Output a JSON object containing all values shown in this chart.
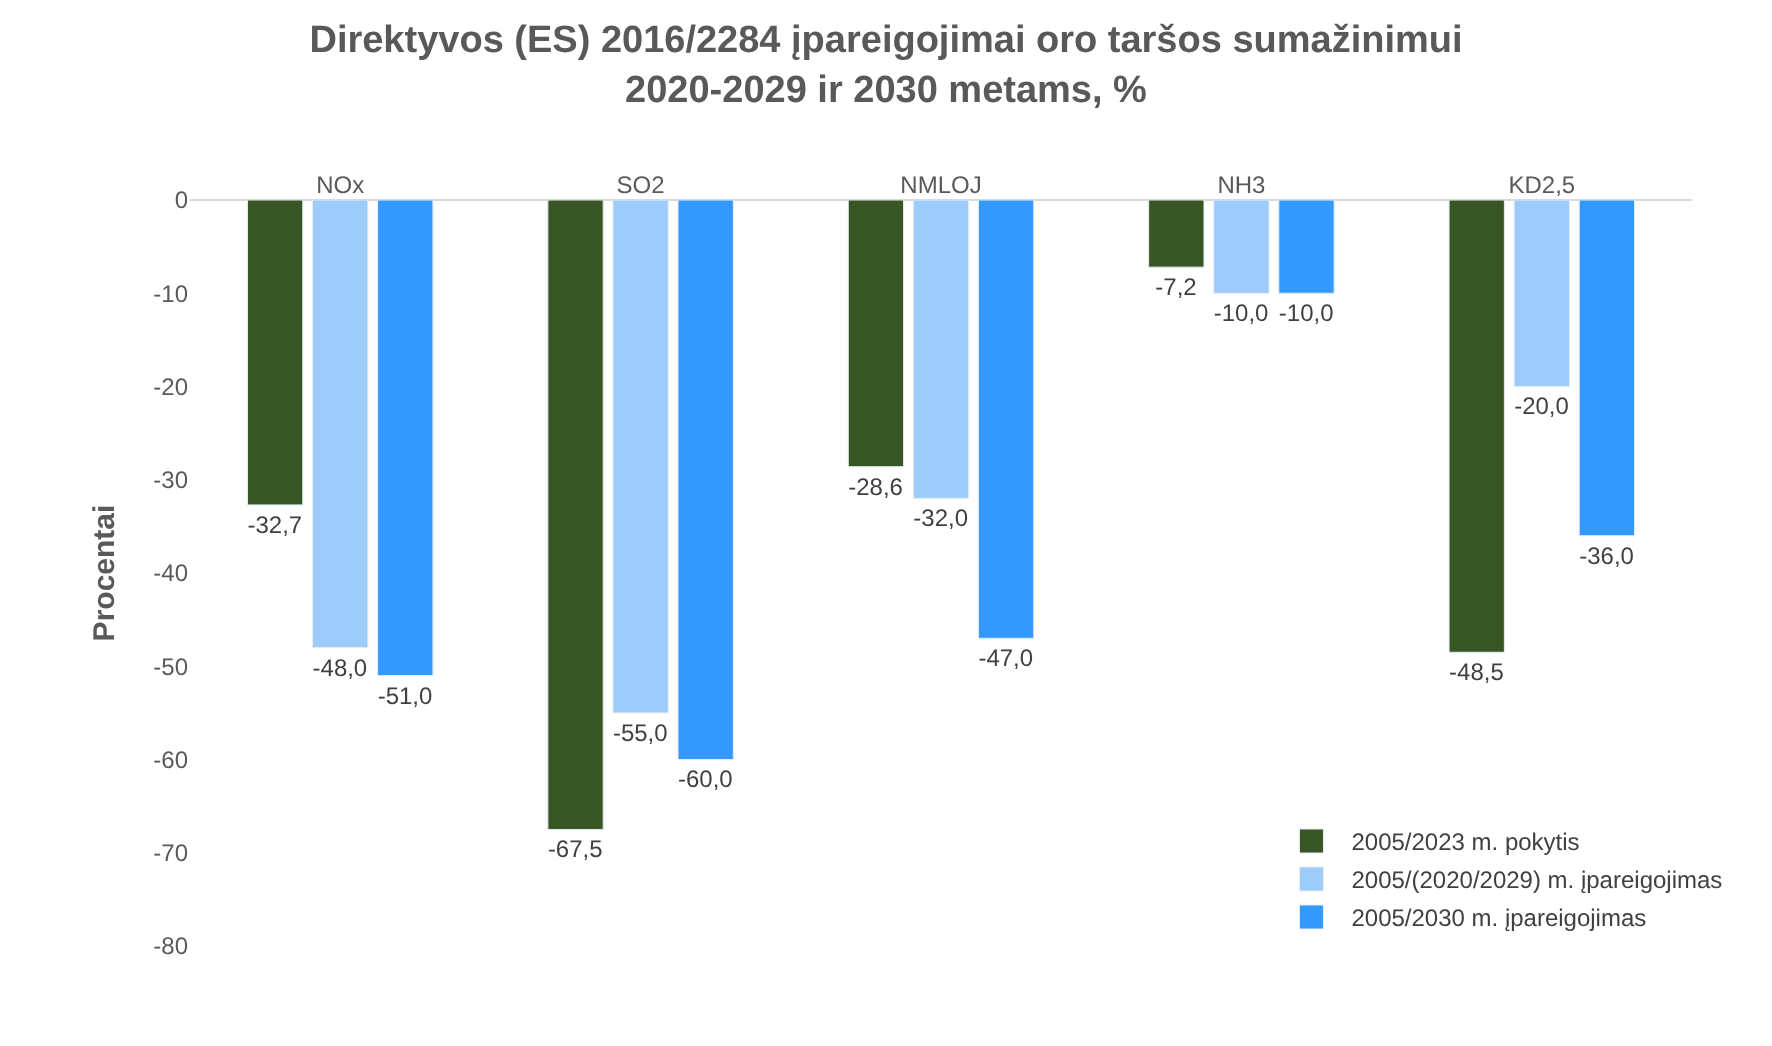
{
  "chart_data": {
    "type": "bar",
    "title": "Direktyvos (ES) 2016/2284 įpareigojimai oro taršos sumažinimui\n2020-2029 ir 2030 metams, %",
    "ylabel": "Procentai",
    "categories": [
      "NOx",
      "SO2",
      "NMLOJ",
      "NH3",
      "KD2,5"
    ],
    "series": [
      {
        "name": "2005/2023 m. pokytis",
        "color": "#375623",
        "values": [
          -32.7,
          -67.5,
          -28.6,
          -7.2,
          -48.5
        ],
        "value_labels": [
          "-32,7",
          "-67,5",
          "-28,6",
          "-7,2",
          "-48,5"
        ]
      },
      {
        "name": "2005/(2020/2029) m. įpareigojimas",
        "color": "#9dcbfa",
        "values": [
          -48.0,
          -55.0,
          -32.0,
          -10.0,
          -20.0
        ],
        "value_labels": [
          "-48,0",
          "-55,0",
          "-32,0",
          "-10,0",
          "-20,0"
        ]
      },
      {
        "name": "2005/2030 m. įpareigojimas",
        "color": "#3399ff",
        "values": [
          -51.0,
          -60.0,
          -47.0,
          -10.0,
          -36.0
        ],
        "value_labels": [
          "-51,0",
          "-60,0",
          "-47,0",
          "-10,0",
          "-36,0"
        ]
      }
    ],
    "ylim": [
      -80,
      0
    ],
    "yticks": [
      0,
      -10,
      -20,
      -30,
      -40,
      -50,
      -60,
      -70,
      -80
    ],
    "legend": "bottom right"
  }
}
